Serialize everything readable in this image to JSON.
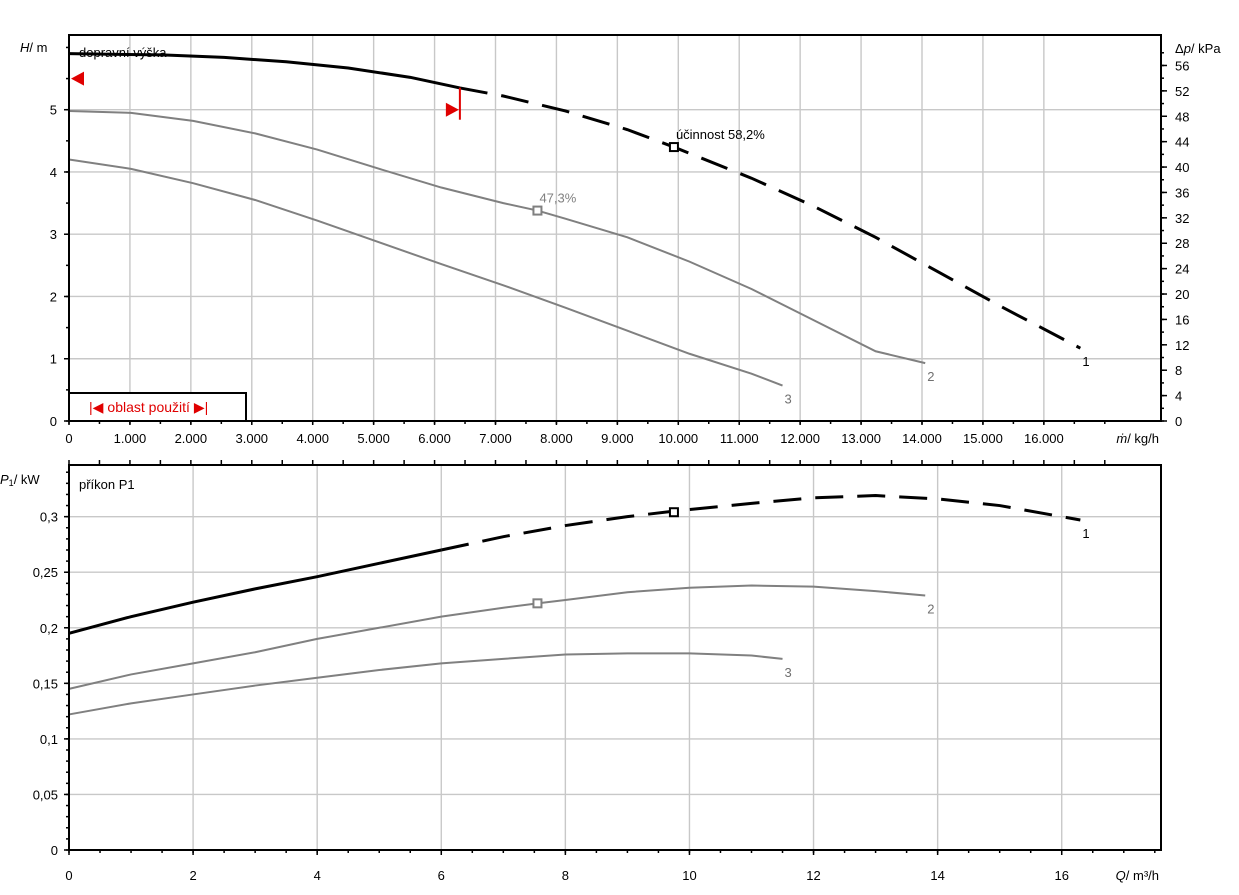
{
  "chart_data": [
    {
      "type": "line",
      "title": "dopravní výška",
      "ylabel_em": "H",
      "ylabel_unit": "/ m",
      "y2label_delta": "Δ",
      "y2label_em": "p",
      "y2label_unit": "/ kPa",
      "xlabel_em": "ṁ",
      "xlabel_unit": "/ kg/h",
      "ylim": [
        0,
        6.2
      ],
      "y2lim": [
        0,
        60.8
      ],
      "xlim": [
        0,
        17.6
      ],
      "yticks": [
        "0",
        "1",
        "2",
        "3",
        "4",
        "5"
      ],
      "y2ticks": [
        "0",
        "4",
        "8",
        "12",
        "16",
        "20",
        "24",
        "28",
        "32",
        "36",
        "40",
        "44",
        "48",
        "52",
        "56"
      ],
      "xticks_mass": [
        "0",
        "1.000",
        "2.000",
        "3.000",
        "4.000",
        "5.000",
        "6.000",
        "7.000",
        "8.000",
        "9.000",
        "10.000",
        "11.000",
        "12.000",
        "13.000",
        "14.000",
        "15.000",
        "16.000"
      ],
      "series": [
        {
          "name": "1",
          "color": "#000000",
          "solid_until": 6.3,
          "x": [
            0,
            1.5,
            2.5,
            3.5,
            4.5,
            5.5,
            6.3,
            7.0,
            8.0,
            9.0,
            9.75,
            11.0,
            12.0,
            13.0,
            14.0,
            15.0,
            16.3
          ],
          "y": [
            5.9,
            5.88,
            5.84,
            5.77,
            5.67,
            5.52,
            5.35,
            5.22,
            4.98,
            4.68,
            4.4,
            3.9,
            3.45,
            2.95,
            2.4,
            1.85,
            1.17
          ]
        },
        {
          "name": "2",
          "color": "#808080",
          "x": [
            0,
            1.0,
            2.0,
            3.0,
            4.0,
            5.0,
            6.0,
            7.0,
            7.55,
            8.0,
            9.0,
            10.0,
            11.0,
            12.0,
            13.0,
            13.8
          ],
          "y": [
            4.98,
            4.95,
            4.82,
            4.62,
            4.36,
            4.05,
            3.75,
            3.5,
            3.38,
            3.25,
            2.95,
            2.56,
            2.12,
            1.62,
            1.12,
            0.93
          ]
        },
        {
          "name": "3",
          "color": "#808080",
          "x": [
            0,
            1.0,
            2.0,
            3.0,
            4.0,
            5.0,
            6.0,
            7.0,
            8.0,
            9.0,
            10.0,
            11.0,
            11.5
          ],
          "y": [
            4.2,
            4.05,
            3.82,
            3.55,
            3.22,
            2.87,
            2.52,
            2.18,
            1.82,
            1.45,
            1.08,
            0.76,
            0.57
          ]
        }
      ],
      "markers": [
        {
          "x": 9.75,
          "y": 4.4,
          "color": "#000000",
          "label": "účinnost 58,2%"
        },
        {
          "x": 7.55,
          "y": 3.38,
          "color": "#808080",
          "label": "47,3%"
        }
      ],
      "range_box_label": "oblast použití",
      "range_box_left_symbol": "|◀",
      "range_box_right_symbol": "▶|",
      "accent_color": "#e00000",
      "range_limits": {
        "left_y": 5.5,
        "right_x": 6.3
      }
    },
    {
      "type": "line",
      "title": "příkon P1",
      "ylabel_em": "P",
      "ylabel_sub": "1",
      "ylabel_unit": "/ kW",
      "xlabel_em": "Q",
      "xlabel_unit": "/ m³/h",
      "ylim": [
        0,
        0.3465
      ],
      "xlim": [
        0,
        17.6
      ],
      "yticks": [
        "0",
        "0,05",
        "0,1",
        "0,15",
        "0,2",
        "0,25",
        "0,3"
      ],
      "xticks": [
        "0",
        "2",
        "4",
        "6",
        "8",
        "10",
        "12",
        "14",
        "16"
      ],
      "series": [
        {
          "name": "1",
          "color": "#000000",
          "solid_until": 6.0,
          "x": [
            0,
            1.0,
            2.0,
            3.0,
            4.0,
            5.0,
            6.0,
            7.0,
            8.0,
            9.0,
            9.75,
            11.0,
            12.0,
            13.0,
            14.0,
            15.0,
            16.3
          ],
          "y": [
            0.195,
            0.21,
            0.223,
            0.235,
            0.246,
            0.258,
            0.27,
            0.282,
            0.292,
            0.3,
            0.305,
            0.312,
            0.317,
            0.319,
            0.316,
            0.31,
            0.297
          ]
        },
        {
          "name": "2",
          "color": "#808080",
          "x": [
            0,
            1.0,
            2.0,
            3.0,
            4.0,
            5.0,
            6.0,
            7.0,
            7.55,
            8.0,
            9.0,
            10.0,
            11.0,
            12.0,
            13.0,
            13.8
          ],
          "y": [
            0.145,
            0.158,
            0.168,
            0.178,
            0.19,
            0.2,
            0.21,
            0.218,
            0.222,
            0.225,
            0.232,
            0.236,
            0.238,
            0.237,
            0.233,
            0.229
          ]
        },
        {
          "name": "3",
          "color": "#808080",
          "x": [
            0,
            1.0,
            2.0,
            3.0,
            4.0,
            5.0,
            6.0,
            7.0,
            8.0,
            9.0,
            10.0,
            11.0,
            11.5
          ],
          "y": [
            0.122,
            0.132,
            0.14,
            0.148,
            0.155,
            0.162,
            0.168,
            0.172,
            0.176,
            0.177,
            0.177,
            0.175,
            0.172
          ]
        }
      ],
      "markers": [
        {
          "x": 9.75,
          "y": 0.304,
          "color": "#000000"
        },
        {
          "x": 7.55,
          "y": 0.222,
          "color": "#808080"
        }
      ]
    }
  ]
}
